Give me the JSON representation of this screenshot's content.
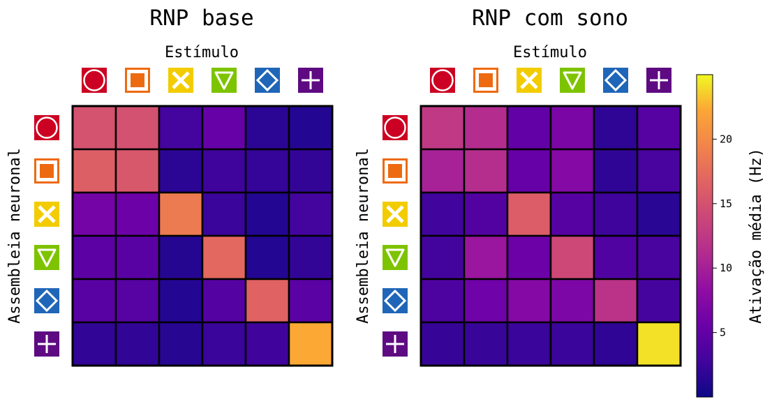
{
  "colorbar": {
    "label": "Ativação média (Hz)",
    "min": 0,
    "max": 25,
    "ticks": [
      5,
      10,
      15,
      20
    ],
    "colormap": "plasma"
  },
  "stimuli": [
    {
      "shape": "circle",
      "color": "#cc0022",
      "icon": "circle-icon"
    },
    {
      "shape": "square",
      "color": "#ee6a10",
      "icon": "square-icon"
    },
    {
      "shape": "x",
      "color": "#f2cc00",
      "icon": "x-icon"
    },
    {
      "shape": "triangle-down",
      "color": "#7ec300",
      "icon": "triangle-down-icon"
    },
    {
      "shape": "diamond",
      "color": "#1f66b8",
      "icon": "diamond-icon"
    },
    {
      "shape": "plus",
      "color": "#5e0a82",
      "icon": "plus-icon"
    }
  ],
  "chart_data": [
    {
      "type": "heatmap",
      "title": "RNP base",
      "xlabel": "Estímulo",
      "ylabel": "Assembleia neuronal",
      "values": [
        [
          15.0,
          14.8,
          3.0,
          5.3,
          1.6,
          1.2
        ],
        [
          16.2,
          15.5,
          1.6,
          2.6,
          2.1,
          2.0
        ],
        [
          6.4,
          5.8,
          18.7,
          2.4,
          1.2,
          3.0
        ],
        [
          4.6,
          4.4,
          1.3,
          17.0,
          1.2,
          2.0
        ],
        [
          4.4,
          4.3,
          1.2,
          4.1,
          16.5,
          4.5
        ],
        [
          1.9,
          1.9,
          1.4,
          2.4,
          2.7,
          22.3
        ]
      ]
    },
    {
      "type": "heatmap",
      "title": "RNP com sono",
      "xlabel": "Estímulo",
      "ylabel": "Assembleia neuronal",
      "values": [
        [
          12.5,
          11.3,
          5.0,
          6.8,
          1.8,
          4.2
        ],
        [
          10.3,
          11.5,
          5.2,
          7.5,
          1.8,
          3.3
        ],
        [
          2.8,
          4.0,
          16.0,
          4.2,
          2.6,
          1.5
        ],
        [
          2.9,
          9.2,
          5.7,
          14.0,
          3.8,
          3.3
        ],
        [
          3.6,
          5.9,
          7.5,
          7.0,
          12.0,
          3.1
        ],
        [
          2.2,
          2.3,
          2.4,
          2.4,
          1.8,
          24.2
        ]
      ]
    }
  ]
}
